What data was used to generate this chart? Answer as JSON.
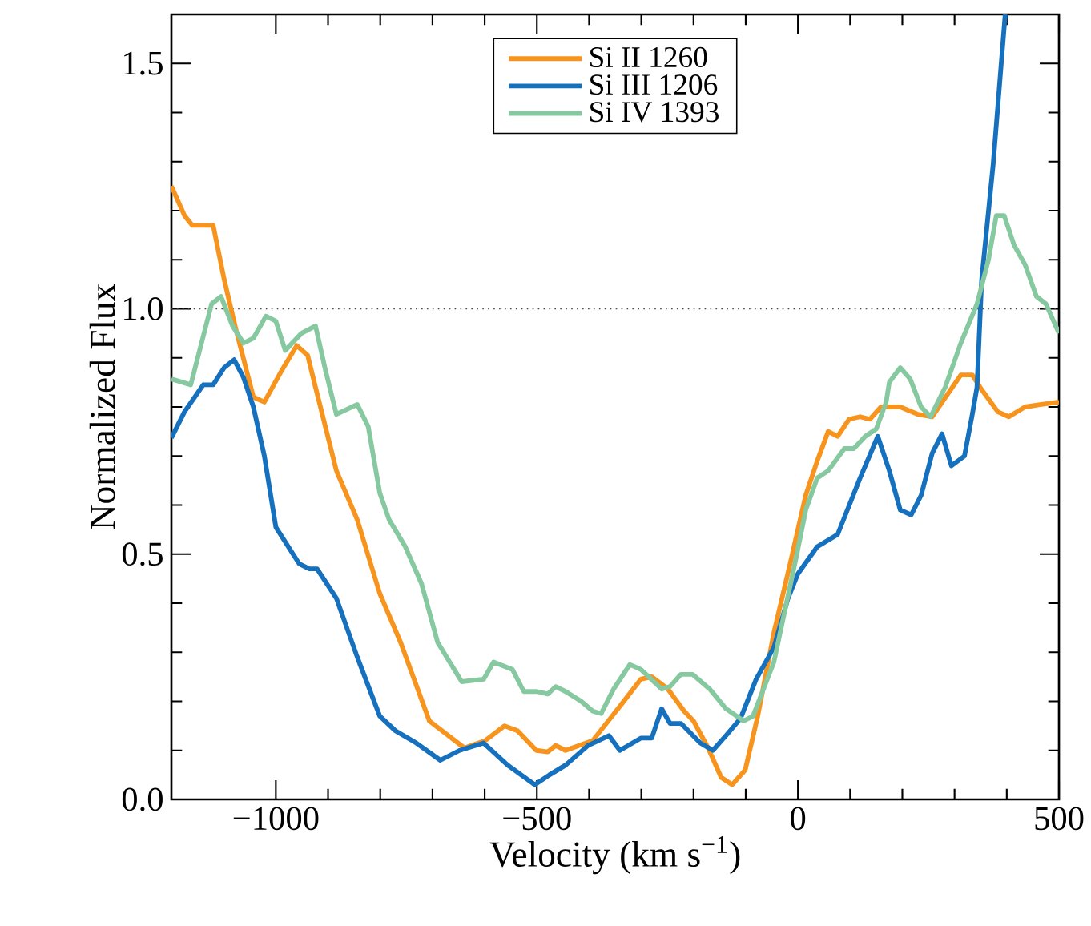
{
  "chart_data": {
    "type": "line",
    "xlabel": "Velocity (km s$^{−1}$)",
    "ylabel": "Normalized Flux",
    "xlim": [
      -1200,
      500
    ],
    "ylim": [
      0,
      1.6
    ],
    "xticks": [
      {
        "value": -1000,
        "label": "−1000"
      },
      {
        "value": -500,
        "label": "−500"
      },
      0,
      500
    ],
    "yticks": [
      {
        "value": 0,
        "label": "0.0"
      },
      {
        "value": 0.5,
        "label": "0.5"
      },
      {
        "value": 1.0,
        "label": "1.0"
      },
      {
        "value": 1.5,
        "label": "1.5"
      }
    ],
    "legend": "top",
    "grid": false,
    "line_style": "solid",
    "marker": "none",
    "ref_lines": [
      {
        "axis": "y",
        "value": 1.0,
        "line_style": "dotted",
        "color": "#444444"
      }
    ],
    "series": [
      {
        "name": "Si II 1260",
        "color": "#f7941d",
        "x": [
          -1200,
          -1175,
          -1160,
          -1120,
          -1099,
          -1077,
          -1043,
          -1022,
          -991,
          -960,
          -939,
          -924,
          -884,
          -844,
          -801,
          -761,
          -706,
          -639,
          -599,
          -562,
          -537,
          -501,
          -479,
          -464,
          -445,
          -393,
          -341,
          -301,
          -280,
          -249,
          -218,
          -200,
          -172,
          -147,
          -126,
          -101,
          -77,
          -46,
          -15,
          15,
          37,
          58,
          76,
          98,
          119,
          138,
          159,
          196,
          230,
          257,
          312,
          334,
          352,
          383,
          404,
          435,
          466,
          500
        ],
        "values": [
          1.25,
          1.19,
          1.17,
          1.17,
          1.06,
          0.96,
          0.82,
          0.81,
          0.87,
          0.925,
          0.905,
          0.84,
          0.67,
          0.57,
          0.42,
          0.32,
          0.16,
          0.105,
          0.12,
          0.15,
          0.14,
          0.1,
          0.097,
          0.11,
          0.1,
          0.12,
          0.19,
          0.245,
          0.25,
          0.225,
          0.18,
          0.16,
          0.105,
          0.045,
          0.03,
          0.06,
          0.17,
          0.34,
          0.48,
          0.62,
          0.69,
          0.75,
          0.74,
          0.775,
          0.78,
          0.775,
          0.8,
          0.8,
          0.785,
          0.78,
          0.865,
          0.865,
          0.835,
          0.79,
          0.78,
          0.8,
          0.805,
          0.81
        ]
      },
      {
        "name": "Si III 1206",
        "color": "#1570be",
        "x": [
          -1200,
          -1175,
          -1139,
          -1120,
          -1099,
          -1080,
          -1062,
          -1043,
          -1022,
          -1000,
          -955,
          -936,
          -921,
          -884,
          -844,
          -801,
          -771,
          -731,
          -685,
          -648,
          -602,
          -556,
          -504,
          -476,
          -445,
          -402,
          -362,
          -341,
          -301,
          -280,
          -261,
          -245,
          -224,
          -187,
          -163,
          -138,
          -110,
          -80,
          -46,
          -19,
          0,
          37,
          76,
          119,
          153,
          175,
          196,
          217,
          236,
          257,
          276,
          294,
          319,
          334,
          343,
          352,
          374,
          397
        ],
        "values": [
          0.737,
          0.79,
          0.845,
          0.845,
          0.88,
          0.896,
          0.86,
          0.8,
          0.7,
          0.555,
          0.48,
          0.47,
          0.47,
          0.41,
          0.29,
          0.17,
          0.14,
          0.115,
          0.08,
          0.1,
          0.115,
          0.07,
          0.03,
          0.05,
          0.07,
          0.11,
          0.13,
          0.1,
          0.125,
          0.125,
          0.185,
          0.155,
          0.155,
          0.115,
          0.1,
          0.13,
          0.165,
          0.245,
          0.31,
          0.41,
          0.46,
          0.515,
          0.54,
          0.655,
          0.74,
          0.67,
          0.59,
          0.58,
          0.62,
          0.705,
          0.745,
          0.68,
          0.7,
          0.785,
          0.84,
          1.06,
          1.295,
          1.6
        ]
      },
      {
        "name": "Si IV 1393",
        "color": "#86c9a0",
        "x": [
          -1200,
          -1163,
          -1123,
          -1105,
          -1083,
          -1062,
          -1043,
          -1019,
          -1000,
          -982,
          -951,
          -924,
          -905,
          -884,
          -844,
          -823,
          -801,
          -783,
          -752,
          -721,
          -690,
          -644,
          -602,
          -583,
          -547,
          -525,
          -500,
          -479,
          -464,
          -445,
          -415,
          -393,
          -377,
          -353,
          -322,
          -301,
          -261,
          -245,
          -224,
          -202,
          -169,
          -138,
          -104,
          -86,
          -46,
          -25,
          -3,
          15,
          37,
          58,
          89,
          107,
          129,
          150,
          169,
          175,
          196,
          215,
          236,
          254,
          282,
          312,
          343,
          365,
          380,
          395,
          414,
          435,
          457,
          475,
          500
        ],
        "values": [
          0.857,
          0.845,
          1.01,
          1.025,
          0.965,
          0.93,
          0.94,
          0.985,
          0.975,
          0.915,
          0.95,
          0.965,
          0.875,
          0.785,
          0.805,
          0.76,
          0.625,
          0.57,
          0.515,
          0.44,
          0.32,
          0.24,
          0.245,
          0.28,
          0.265,
          0.22,
          0.22,
          0.215,
          0.23,
          0.22,
          0.2,
          0.18,
          0.175,
          0.225,
          0.275,
          0.265,
          0.225,
          0.23,
          0.255,
          0.255,
          0.225,
          0.185,
          0.16,
          0.17,
          0.28,
          0.385,
          0.495,
          0.59,
          0.655,
          0.67,
          0.715,
          0.715,
          0.74,
          0.755,
          0.81,
          0.85,
          0.88,
          0.857,
          0.8,
          0.78,
          0.84,
          0.93,
          1.01,
          1.1,
          1.19,
          1.19,
          1.13,
          1.09,
          1.025,
          1.01,
          0.95
        ]
      }
    ]
  }
}
